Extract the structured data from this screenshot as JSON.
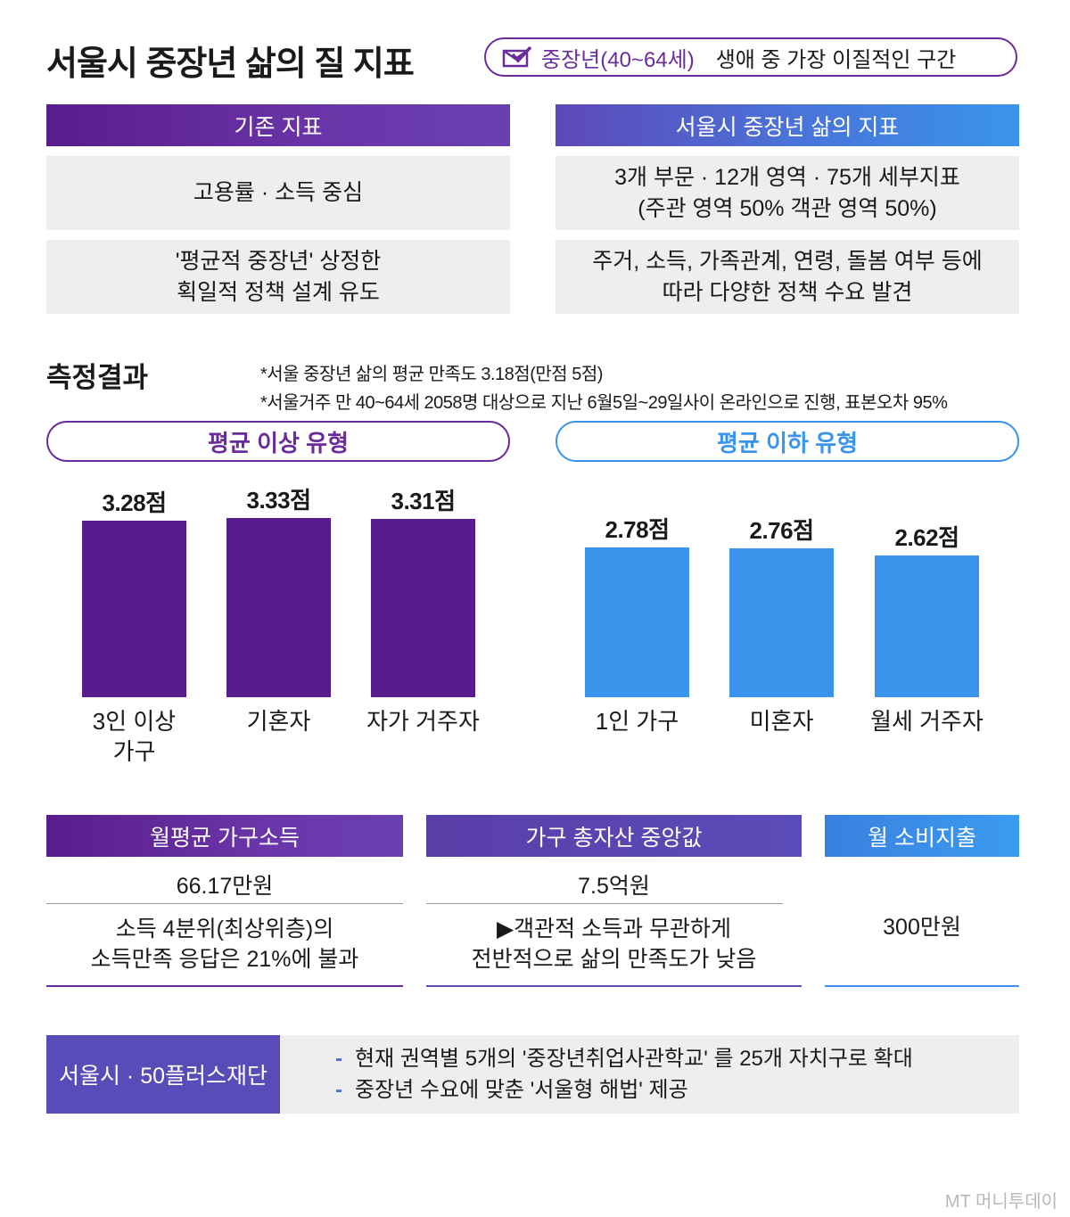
{
  "title": "서울시 중장년 삶의 질 지표",
  "top_pill": {
    "highlight": "중장년(40~64세)",
    "text": "생애 중 가장 이질적인 구간",
    "icon": "check-envelope-icon"
  },
  "compare": {
    "left_header": "기존 지표",
    "right_header": "서울시 중장년 삶의 지표",
    "left_rows": [
      [
        "고용률 · 소득 중심"
      ],
      [
        "'평균적 중장년' 상정한",
        "획일적 정책 설계 유도"
      ]
    ],
    "right_rows": [
      [
        "3개 부문 · 12개 영역 · 75개 세부지표",
        "(주관 영역 50% 객관 영역 50%)"
      ],
      [
        "주거, 소득, 가족관계, 연령, 돌봄 여부 등에",
        "따라 다양한 정책 수요 발견"
      ]
    ]
  },
  "results": {
    "heading": "측정결과",
    "note1": "*서울 중장년 삶의 평균 만족도 3.18점(만점 5점)",
    "note2": "*서울거주 만 40~64세 2058명 대상으로 지난 6월5일~29일사이 온라인으로 진행, 표본오차 95%",
    "above_label": "평균 이상 유형",
    "below_label": "평균 이하 유형"
  },
  "chart_data": {
    "type": "bar",
    "unit": "점",
    "categories": [
      "3인 이상 가구",
      "기혼자",
      "자가 거주자",
      "1인 가구",
      "미혼자",
      "월세 거주자"
    ],
    "category_lines": [
      [
        "3인 이상",
        "가구"
      ],
      [
        "기혼자"
      ],
      [
        "자가 거주자"
      ],
      [
        "1인 가구"
      ],
      [
        "미혼자"
      ],
      [
        "월세 거주자"
      ]
    ],
    "values": [
      3.28,
      3.33,
      3.31,
      2.78,
      2.76,
      2.62
    ],
    "value_labels": [
      "3.28점",
      "3.33점",
      "3.31점",
      "2.78점",
      "2.76점",
      "2.62점"
    ],
    "groups": [
      "평균 이상 유형",
      "평균 이상 유형",
      "평균 이상 유형",
      "평균 이하 유형",
      "평균 이하 유형",
      "평균 이하 유형"
    ],
    "colors": {
      "above": "#5a1c8c",
      "below": "#3a94ec"
    }
  },
  "stats": [
    {
      "header": "월평균 가구소득",
      "value": "66.17만원",
      "desc": [
        "소득 4분위(최상위층)의",
        "소득만족 응답은 21%에 불과"
      ]
    },
    {
      "header": "가구 총자산 중앙값",
      "value": "7.5억원",
      "desc": [
        "▶객관적 소득과 무관하게",
        "전반적으로 삶의 만족도가 낮음"
      ]
    },
    {
      "header": "월 소비지출",
      "value": "300만원",
      "desc": []
    }
  ],
  "footer": {
    "label": "서울시 · 50플러스재단",
    "items": [
      "현재 권역별 5개의 '중장년취업사관학교' 를 25개 자치구로 확대",
      "중장년 수요에 맞춘 '서울형 해법' 제공"
    ],
    "bullet": "-"
  },
  "credit": "MT 머니투데이"
}
